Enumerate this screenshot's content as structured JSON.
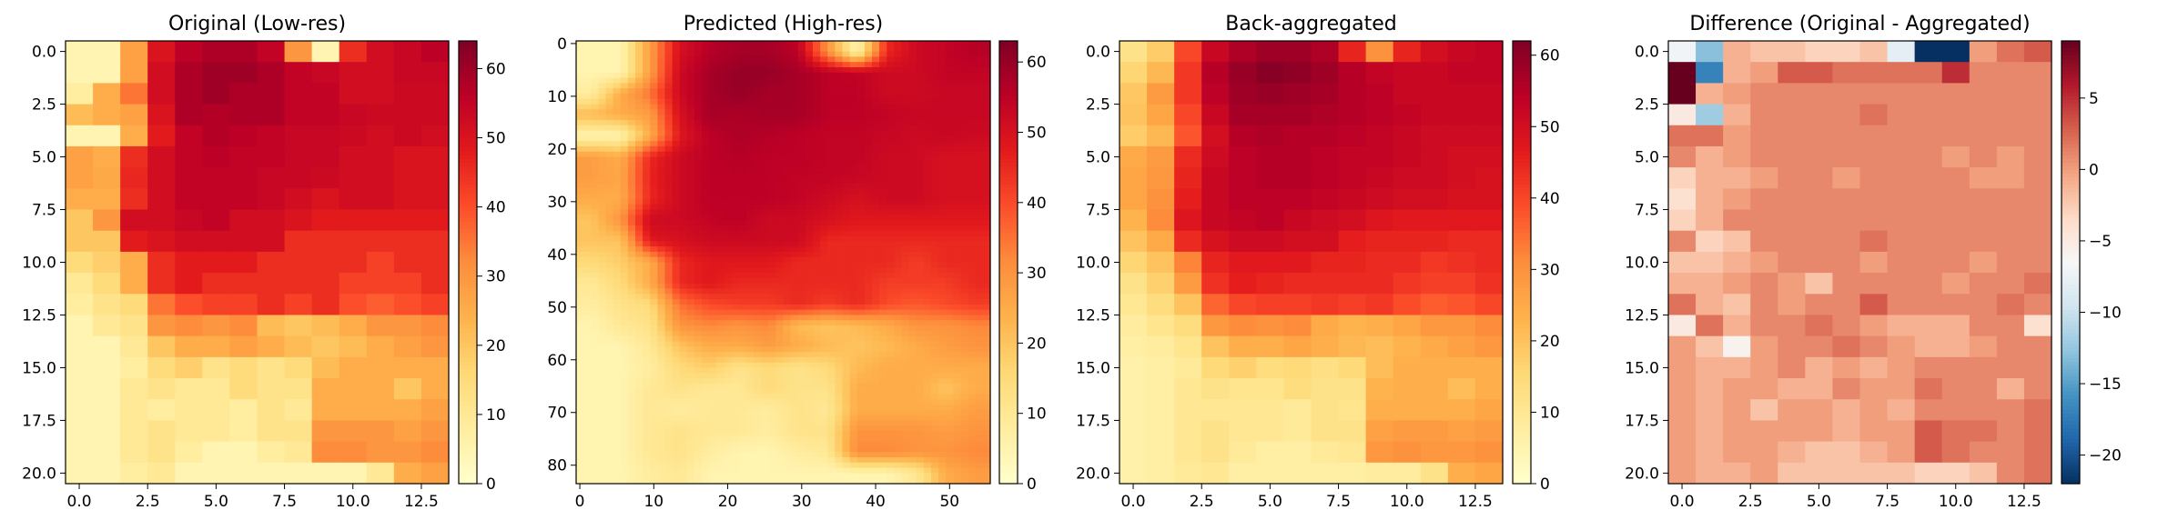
{
  "chart_data": [
    {
      "type": "heatmap",
      "title": "Original (Low-res)",
      "xlabel": "",
      "ylabel": "",
      "grid": false,
      "shape": [
        21,
        14
      ],
      "xlim": [
        -0.5,
        13.5
      ],
      "ylim": [
        20.5,
        -0.5
      ],
      "xticks": [
        "0.0",
        "2.5",
        "5.0",
        "7.5",
        "10.0",
        "12.5"
      ],
      "yticks": [
        "0.0",
        "2.5",
        "5.0",
        "7.5",
        "10.0",
        "12.5",
        "15.0",
        "17.5",
        "20.0"
      ],
      "colormap": "YlOrRd",
      "colorbar": {
        "range": [
          0,
          64
        ],
        "ticks": [
          "0",
          "10",
          "20",
          "30",
          "40",
          "50",
          "60"
        ]
      },
      "values": [
        [
          5,
          5,
          28,
          50,
          56,
          58,
          58,
          55,
          30,
          5,
          45,
          52,
          54,
          56
        ],
        [
          5,
          5,
          28,
          52,
          58,
          60,
          60,
          58,
          55,
          54,
          52,
          52,
          54,
          54
        ],
        [
          8,
          25,
          35,
          52,
          58,
          60,
          58,
          58,
          55,
          55,
          52,
          52,
          53,
          53
        ],
        [
          22,
          25,
          28,
          50,
          58,
          57,
          58,
          58,
          55,
          55,
          54,
          53,
          53,
          53
        ],
        [
          5,
          5,
          25,
          48,
          55,
          57,
          56,
          55,
          54,
          54,
          53,
          52,
          53,
          52
        ],
        [
          28,
          25,
          45,
          52,
          55,
          56,
          55,
          55,
          54,
          54,
          52,
          52,
          50,
          50
        ],
        [
          28,
          26,
          46,
          52,
          55,
          55,
          55,
          54,
          54,
          53,
          52,
          52,
          50,
          50
        ],
        [
          25,
          25,
          45,
          52,
          55,
          55,
          55,
          54,
          52,
          50,
          52,
          52,
          50,
          50
        ],
        [
          20,
          30,
          52,
          52,
          54,
          55,
          52,
          52,
          50,
          48,
          48,
          48,
          48,
          48
        ],
        [
          20,
          20,
          48,
          50,
          52,
          52,
          52,
          52,
          45,
          45,
          45,
          45,
          45,
          45
        ],
        [
          15,
          18,
          25,
          45,
          48,
          48,
          48,
          45,
          45,
          45,
          45,
          42,
          45,
          45
        ],
        [
          10,
          15,
          25,
          45,
          48,
          45,
          45,
          45,
          45,
          45,
          42,
          42,
          42,
          45
        ],
        [
          8,
          12,
          15,
          35,
          40,
          42,
          42,
          45,
          42,
          45,
          40,
          38,
          40,
          42
        ],
        [
          5,
          10,
          12,
          30,
          32,
          30,
          32,
          22,
          20,
          22,
          25,
          30,
          30,
          32
        ],
        [
          5,
          5,
          10,
          20,
          25,
          25,
          28,
          25,
          22,
          20,
          22,
          25,
          28,
          30
        ],
        [
          5,
          5,
          8,
          15,
          18,
          12,
          15,
          12,
          15,
          22,
          25,
          25,
          25,
          25
        ],
        [
          5,
          5,
          10,
          12,
          10,
          10,
          15,
          12,
          12,
          25,
          25,
          25,
          20,
          25
        ],
        [
          5,
          5,
          10,
          8,
          10,
          10,
          8,
          12,
          10,
          25,
          25,
          25,
          25,
          28
        ],
        [
          5,
          5,
          10,
          12,
          10,
          10,
          8,
          12,
          12,
          30,
          30,
          30,
          28,
          30
        ],
        [
          5,
          5,
          10,
          12,
          8,
          5,
          5,
          8,
          10,
          32,
          32,
          30,
          30,
          32
        ],
        [
          5,
          5,
          8,
          10,
          5,
          5,
          5,
          5,
          5,
          5,
          5,
          10,
          25,
          28
        ]
      ]
    },
    {
      "type": "heatmap",
      "title": "Predicted (High-res)",
      "xlabel": "",
      "ylabel": "",
      "grid": false,
      "shape": [
        84,
        56
      ],
      "xlim": [
        -0.5,
        55.5
      ],
      "ylim": [
        83.5,
        -0.5
      ],
      "xticks": [
        "0",
        "10",
        "20",
        "30",
        "40",
        "50"
      ],
      "yticks": [
        "0",
        "10",
        "20",
        "30",
        "40",
        "50",
        "60",
        "70",
        "80"
      ],
      "colormap": "YlOrRd",
      "colorbar": {
        "range": [
          0,
          63
        ],
        "ticks": [
          "0",
          "10",
          "20",
          "30",
          "40",
          "50",
          "60"
        ]
      },
      "note_values": "smooth upsampled field: upsampled from the low-res grid by a factor of 4"
    },
    {
      "type": "heatmap",
      "title": "Back-aggregated",
      "xlabel": "",
      "ylabel": "",
      "grid": false,
      "shape": [
        21,
        14
      ],
      "xlim": [
        -0.5,
        13.5
      ],
      "ylim": [
        20.5,
        -0.5
      ],
      "xticks": [
        "0.0",
        "2.5",
        "5.0",
        "7.5",
        "10.0",
        "12.5"
      ],
      "yticks": [
        "0.0",
        "2.5",
        "5.0",
        "7.5",
        "10.0",
        "12.5",
        "15.0",
        "17.5",
        "20.0"
      ],
      "colormap": "YlOrRd",
      "colorbar": {
        "range": [
          0,
          62
        ],
        "ticks": [
          "0",
          "10",
          "20",
          "30",
          "40",
          "50",
          "60"
        ]
      },
      "values": [
        [
          12,
          18,
          40,
          52,
          56,
          58,
          58,
          56,
          45,
          30,
          45,
          50,
          52,
          53
        ],
        [
          16,
          22,
          42,
          55,
          59,
          61,
          60,
          58,
          55,
          53,
          52,
          52,
          53,
          53
        ],
        [
          19,
          28,
          42,
          54,
          58,
          59,
          58,
          57,
          55,
          54,
          52,
          52,
          52,
          52
        ],
        [
          20,
          26,
          40,
          52,
          57,
          57,
          57,
          56,
          55,
          54,
          53,
          52,
          52,
          52
        ],
        [
          18,
          22,
          38,
          50,
          55,
          56,
          55,
          55,
          54,
          53,
          52,
          51,
          51,
          51
        ],
        [
          25,
          28,
          44,
          51,
          54,
          55,
          55,
          54,
          53,
          53,
          52,
          51,
          50,
          50
        ],
        [
          26,
          29,
          45,
          52,
          54,
          55,
          55,
          54,
          53,
          52,
          51,
          51,
          50,
          49
        ],
        [
          26,
          30,
          46,
          52,
          54,
          54,
          54,
          53,
          52,
          51,
          50,
          50,
          49,
          49
        ],
        [
          23,
          31,
          48,
          52,
          53,
          54,
          52,
          51,
          50,
          48,
          47,
          47,
          47,
          47
        ],
        [
          20,
          25,
          44,
          49,
          51,
          51,
          50,
          50,
          46,
          45,
          45,
          45,
          44,
          44
        ],
        [
          16,
          20,
          32,
          45,
          47,
          47,
          47,
          45,
          45,
          44,
          44,
          42,
          43,
          44
        ],
        [
          12,
          17,
          28,
          43,
          46,
          45,
          44,
          44,
          44,
          44,
          42,
          41,
          41,
          43
        ],
        [
          10,
          14,
          20,
          36,
          40,
          41,
          41,
          42,
          41,
          42,
          39,
          37,
          38,
          40
        ],
        [
          8,
          11,
          14,
          29,
          31,
          30,
          31,
          25,
          23,
          24,
          26,
          29,
          29,
          31
        ],
        [
          7,
          8,
          11,
          20,
          24,
          24,
          26,
          24,
          22,
          21,
          23,
          25,
          27,
          29
        ],
        [
          6,
          7,
          9,
          15,
          17,
          14,
          15,
          13,
          15,
          21,
          24,
          24,
          24,
          24
        ],
        [
          6,
          7,
          10,
          12,
          11,
          11,
          14,
          12,
          12,
          23,
          24,
          24,
          21,
          24
        ],
        [
          6,
          7,
          10,
          10,
          10,
          10,
          9,
          12,
          11,
          24,
          24,
          24,
          24,
          26
        ],
        [
          6,
          7,
          10,
          12,
          10,
          10,
          9,
          12,
          12,
          27,
          28,
          28,
          27,
          28
        ],
        [
          6,
          7,
          10,
          12,
          9,
          7,
          7,
          9,
          10,
          29,
          30,
          29,
          29,
          30
        ],
        [
          6,
          7,
          9,
          10,
          7,
          7,
          7,
          7,
          7,
          8,
          8,
          12,
          24,
          26
        ]
      ]
    },
    {
      "type": "heatmap",
      "title": "Difference (Original - Aggregated)",
      "xlabel": "",
      "ylabel": "",
      "grid": false,
      "shape": [
        21,
        14
      ],
      "xlim": [
        -0.5,
        13.5
      ],
      "ylim": [
        20.5,
        -0.5
      ],
      "xticks": [
        "0.0",
        "2.5",
        "5.0",
        "7.5",
        "10.0",
        "12.5"
      ],
      "yticks": [
        "0.0",
        "2.5",
        "5.0",
        "7.5",
        "10.0",
        "12.5",
        "15.0",
        "17.5",
        "20.0"
      ],
      "colormap": "RdBu_r",
      "colorbar": {
        "range": [
          -22,
          9
        ],
        "ticks": [
          "−20",
          "−15",
          "−10",
          "−5",
          "0",
          "5"
        ]
      },
      "values": [
        [
          -7,
          -13,
          -1,
          -2,
          -2,
          -3,
          -3,
          -2,
          -8,
          -22,
          -22,
          0,
          2,
          3
        ],
        [
          9,
          -17,
          -1,
          0,
          3,
          3,
          2,
          2,
          2,
          2,
          5,
          1,
          1,
          1
        ],
        [
          9,
          -1,
          0,
          1,
          1,
          1,
          1,
          1,
          1,
          1,
          1,
          1,
          1,
          1
        ],
        [
          -5,
          -12,
          -1,
          1,
          1,
          1,
          1,
          2,
          1,
          1,
          1,
          1,
          1,
          1
        ],
        [
          2,
          2,
          0,
          1,
          1,
          1,
          1,
          1,
          1,
          1,
          1,
          1,
          1,
          1
        ],
        [
          1,
          -1,
          0,
          1,
          1,
          1,
          1,
          1,
          1,
          1,
          0,
          1,
          0,
          1
        ],
        [
          -3,
          -1,
          -1,
          0,
          1,
          1,
          0,
          1,
          1,
          1,
          1,
          0,
          0,
          1
        ],
        [
          -4,
          -1,
          0,
          1,
          1,
          1,
          1,
          1,
          1,
          1,
          1,
          1,
          1,
          1
        ],
        [
          -3,
          -1,
          1,
          1,
          1,
          1,
          1,
          1,
          1,
          1,
          1,
          1,
          1,
          1
        ],
        [
          1,
          -3,
          -2,
          1,
          1,
          1,
          1,
          2,
          1,
          1,
          1,
          1,
          1,
          1
        ],
        [
          -2,
          -2,
          -1,
          0,
          1,
          1,
          1,
          0,
          1,
          1,
          1,
          0,
          1,
          1
        ],
        [
          -1,
          -1,
          0,
          1,
          0,
          -2,
          1,
          1,
          1,
          1,
          0,
          1,
          1,
          2
        ],
        [
          2,
          -1,
          -2,
          1,
          0,
          1,
          1,
          3,
          1,
          1,
          1,
          1,
          2,
          1
        ],
        [
          -5,
          2,
          -1,
          1,
          1,
          2,
          1,
          0,
          -1,
          -1,
          -1,
          1,
          1,
          -4
        ],
        [
          0,
          -2,
          -6,
          0,
          1,
          1,
          2,
          1,
          0,
          -1,
          -1,
          0,
          1,
          1
        ],
        [
          0,
          -1,
          -1,
          0,
          1,
          -1,
          0,
          -1,
          0,
          1,
          1,
          1,
          1,
          1
        ],
        [
          0,
          -1,
          0,
          0,
          -1,
          -1,
          1,
          0,
          0,
          2,
          1,
          1,
          -1,
          1
        ],
        [
          0,
          -1,
          0,
          -2,
          0,
          0,
          -1,
          0,
          -1,
          1,
          1,
          1,
          1,
          2
        ],
        [
          0,
          -1,
          0,
          0,
          0,
          0,
          -1,
          0,
          0,
          3,
          2,
          2,
          1,
          2
        ],
        [
          0,
          -1,
          0,
          0,
          -1,
          -2,
          -2,
          -1,
          0,
          3,
          2,
          1,
          1,
          2
        ],
        [
          0,
          -1,
          -1,
          0,
          -2,
          -2,
          -2,
          -2,
          -2,
          -3,
          -3,
          -2,
          1,
          2
        ]
      ]
    }
  ]
}
